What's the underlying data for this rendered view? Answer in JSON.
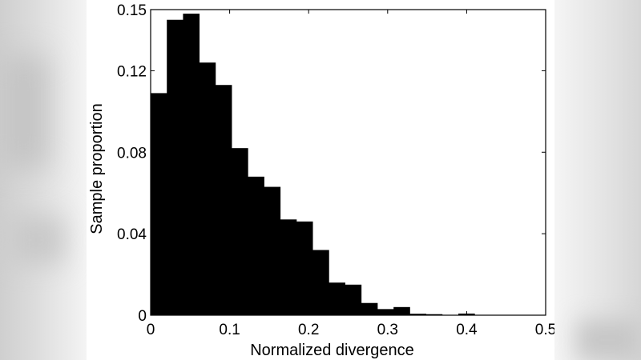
{
  "chart_data": {
    "type": "bar",
    "title": "",
    "xlabel": "Normalized divergence",
    "ylabel": "Sample proportion",
    "xlim": [
      0,
      0.5
    ],
    "ylim": [
      0,
      0.15
    ],
    "xticks": [
      "0",
      "0.1",
      "0.2",
      "0.3",
      "0.4",
      "0.5"
    ],
    "yticks": [
      "0",
      "0.04",
      "0.08",
      "0.12",
      "0.15"
    ],
    "grid": false,
    "bar_color": "#000000",
    "bin_width": 0.0205,
    "bins": [
      {
        "x0": 0.0,
        "value": 0.109
      },
      {
        "x0": 0.0205,
        "value": 0.145
      },
      {
        "x0": 0.041,
        "value": 0.148
      },
      {
        "x0": 0.0615,
        "value": 0.124
      },
      {
        "x0": 0.082,
        "value": 0.113
      },
      {
        "x0": 0.1025,
        "value": 0.082
      },
      {
        "x0": 0.123,
        "value": 0.068
      },
      {
        "x0": 0.1435,
        "value": 0.063
      },
      {
        "x0": 0.164,
        "value": 0.047
      },
      {
        "x0": 0.1845,
        "value": 0.046
      },
      {
        "x0": 0.205,
        "value": 0.032
      },
      {
        "x0": 0.2255,
        "value": 0.016
      },
      {
        "x0": 0.246,
        "value": 0.015
      },
      {
        "x0": 0.2665,
        "value": 0.006
      },
      {
        "x0": 0.287,
        "value": 0.003
      },
      {
        "x0": 0.3075,
        "value": 0.004
      },
      {
        "x0": 0.328,
        "value": 0.0007
      },
      {
        "x0": 0.3485,
        "value": 0.0005
      },
      {
        "x0": 0.3895,
        "value": 0.0008
      }
    ]
  }
}
